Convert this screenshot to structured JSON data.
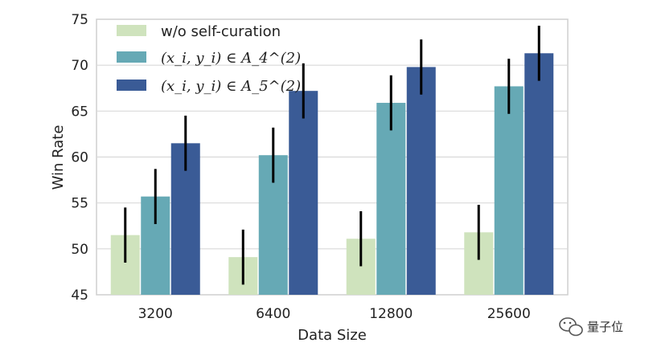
{
  "chart_data": {
    "type": "bar",
    "xlabel": "Data Size",
    "ylabel": "Win Rate",
    "ylim": [
      45,
      75
    ],
    "yticks": [
      45,
      50,
      55,
      60,
      65,
      70,
      75
    ],
    "grid": true,
    "legend_position": "top-left",
    "categories": [
      "3200",
      "6400",
      "12800",
      "25600"
    ],
    "series": [
      {
        "name": "w/o self-curation",
        "color": "#cfe3bd",
        "values": [
          51.5,
          49.1,
          51.1,
          51.8
        ],
        "errors": [
          3.0,
          3.0,
          3.0,
          3.0
        ]
      },
      {
        "name": "(x_i, y_i) ∈ A_4^(2)",
        "color": "#66a9b5",
        "values": [
          55.7,
          60.2,
          65.9,
          67.7
        ],
        "errors": [
          3.0,
          3.0,
          3.0,
          3.0
        ]
      },
      {
        "name": "(x_i, y_i) ∈ A_5^(2)",
        "color": "#3a5b96",
        "values": [
          61.5,
          67.2,
          69.8,
          71.3
        ],
        "errors": [
          3.0,
          3.0,
          3.0,
          3.0
        ]
      }
    ]
  },
  "watermark": {
    "text": "量子位",
    "icon": "wechat-icon"
  }
}
